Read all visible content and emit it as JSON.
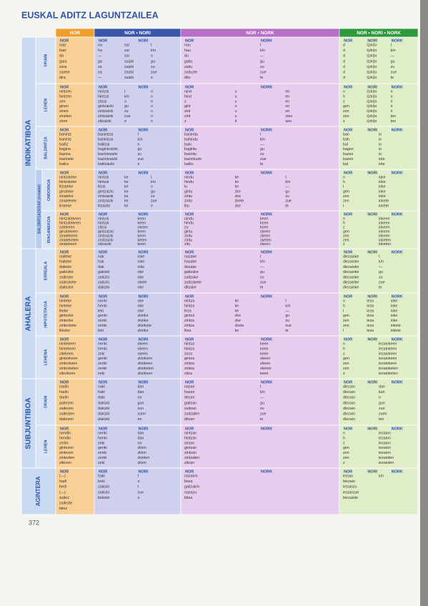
{
  "title": "EUSKAL ADITZ LAGUNTZAILEA",
  "columns": [
    "NOR",
    "NOR • NORI",
    "NOR • NORK",
    "NOR • NORI • NORK"
  ],
  "cell_headers": {
    "nor": [
      "NOR"
    ],
    "nor_nori": [
      "NOR",
      "NORI"
    ],
    "nor_nork": [
      "NOR",
      "NORK"
    ],
    "nor_nori_nork": [
      "NOR",
      "NORI",
      "NORK"
    ]
  },
  "groups": [
    {
      "label": "INDIKATIBOA",
      "sub": "BALDINTZAZKOAK (irrealak)"
    },
    {
      "label": "AHALERA"
    },
    {
      "label": "SUBJUNTIBOA"
    },
    {
      "label": "AGINTERA"
    }
  ],
  "sections": [
    {
      "label": "ORAIN",
      "nor": [
        [
          "naiz"
        ],
        [
          "haiz"
        ],
        [
          "da"
        ],
        [
          "gara"
        ],
        [
          "zara"
        ],
        [
          "zarete"
        ],
        [
          "dira"
        ]
      ],
      "nor_nori": [
        [
          "na",
          "zai",
          "t"
        ],
        [
          "ha",
          "zai",
          "k/n"
        ],
        [
          "—",
          "zai",
          "o"
        ],
        [
          "ga",
          "zaizki",
          "gu"
        ],
        [
          "za",
          "zaizki",
          "zu"
        ],
        [
          "za",
          "zaizki",
          "zue"
        ],
        [
          "—",
          "zaizki",
          "e"
        ]
      ],
      "nor_nork": [
        [
          "nau",
          "t"
        ],
        [
          "hau",
          "k/n"
        ],
        [
          "du",
          "—"
        ],
        [
          "gaitu",
          "gu"
        ],
        [
          "zaitu",
          "zu"
        ],
        [
          "zaituzte",
          "zue"
        ],
        [
          "ditu",
          "te"
        ]
      ],
      "nor_nori_nork": [
        [
          "d",
          "i(zki)o",
          "t"
        ],
        [
          "d",
          "i(zki)o",
          "k/n"
        ],
        [
          "d",
          "i(zki)o",
          "—"
        ],
        [
          "d",
          "i(zki)o",
          "gu"
        ],
        [
          "d",
          "i(zki)o",
          "zu"
        ],
        [
          "d",
          "i(zki)o",
          "zue"
        ],
        [
          "d",
          "i(zki)o",
          "te"
        ]
      ]
    },
    {
      "label": "LEHEN",
      "nor": [
        [
          "nintzen"
        ],
        [
          "hintzen"
        ],
        [
          "zen"
        ],
        [
          "ginen"
        ],
        [
          "zinen"
        ],
        [
          "zineten"
        ],
        [
          "ziren"
        ]
      ],
      "nor_nori": [
        [
          "nintzai",
          "t",
          "n"
        ],
        [
          "hintzai",
          "k/n",
          "n"
        ],
        [
          "zitzai",
          "o",
          "n"
        ],
        [
          "gintzaizki",
          "gu",
          "n"
        ],
        [
          "zintzaizki",
          "zu",
          "n"
        ],
        [
          "zintzaizki",
          "zue",
          "n"
        ],
        [
          "zitzaizki",
          "e",
          "n"
        ]
      ],
      "nor_nork": [
        [
          "nind",
          "u",
          "en"
        ],
        [
          "hind",
          "u",
          "en"
        ],
        [
          "z",
          "u",
          "en"
        ],
        [
          "gint",
          "u",
          "en"
        ],
        [
          "zint",
          "u",
          "en"
        ],
        [
          "zint",
          "u",
          "zten"
        ],
        [
          "z",
          "it",
          "uen"
        ]
      ],
      "nor_nori_nork": [
        [
          "n",
          "i(zki)o",
          "n"
        ],
        [
          "h",
          "i(zki)o",
          "n"
        ],
        [
          "z",
          "i(zki)o",
          "n"
        ],
        [
          "gen",
          "i(zki)o",
          "n"
        ],
        [
          "zen",
          "i(zki)o",
          "n"
        ],
        [
          "zen",
          "i(zki)o",
          "ten"
        ],
        [
          "z",
          "i(zki)o",
          "ten"
        ]
      ]
    },
    {
      "label": "BALDINTZA",
      "nor": [
        [
          "banintz"
        ],
        [
          "bahintz"
        ],
        [
          "balitz"
        ],
        [
          "bagina"
        ],
        [
          "bazina"
        ],
        [
          "bazinete"
        ],
        [
          "balira"
        ]
      ],
      "nor_nori": [
        [
          "banintzai",
          "t"
        ],
        [
          "bahintzai",
          "k/n"
        ],
        [
          "balitzai",
          "o"
        ],
        [
          "bagintzaizki",
          "gu"
        ],
        [
          "bazintzaizki",
          "zu"
        ],
        [
          "bazintzaizki",
          "zue"
        ],
        [
          "balitzaizki",
          "e"
        ]
      ],
      "nor_nork": [
        [
          "banindu",
          "t"
        ],
        [
          "bahindu",
          "k/n"
        ],
        [
          "balu",
          "—"
        ],
        [
          "bagintu",
          "gu"
        ],
        [
          "bazintu",
          "zu"
        ],
        [
          "bazintuzte",
          "zue"
        ],
        [
          "balitu",
          "te"
        ]
      ],
      "nor_nori_nork": [
        [
          "ban",
          "io"
        ],
        [
          "bah",
          "io"
        ],
        [
          "bal",
          "io"
        ],
        [
          "bagen",
          "io"
        ],
        [
          "bazen",
          "io"
        ],
        [
          "bazen",
          "iote"
        ],
        [
          "bal",
          "iote"
        ]
      ]
    },
    {
      "label": "ONDORIOA",
      "nor": [
        [
          "nintzateke"
        ],
        [
          "hintzateke"
        ],
        [
          "litzateke"
        ],
        [
          "ginateke"
        ],
        [
          "zinateke"
        ],
        [
          "zinatekete"
        ],
        [
          "lirateke"
        ]
      ],
      "nor_nori": [
        [
          "nintzai",
          "ke",
          "t"
        ],
        [
          "hintzai",
          "ke",
          "k/n"
        ],
        [
          "litzai",
          "ke",
          "o"
        ],
        [
          "gintzaizki",
          "ke",
          "gu"
        ],
        [
          "zintzaizki",
          "ke",
          "zu"
        ],
        [
          "zintzaizki",
          "ke",
          "zue"
        ],
        [
          "litzaizki",
          "ke",
          "e"
        ]
      ],
      "nor_nork": [
        [
          "nindu",
          "ke",
          "t"
        ],
        [
          "hindu",
          "ke",
          "k/n"
        ],
        [
          "lu",
          "ke",
          "—"
        ],
        [
          "gintu",
          "zke",
          "gu"
        ],
        [
          "zintu",
          "zke",
          "zu"
        ],
        [
          "zintu",
          "zkete",
          "zue"
        ],
        [
          "litu",
          "zke",
          "te"
        ]
      ],
      "nor_nori_nork": [
        [
          "n",
          "ioke"
        ],
        [
          "h",
          "ioke"
        ],
        [
          "l",
          "ioke"
        ],
        [
          "gen",
          "ioke"
        ],
        [
          "zen",
          "ioke"
        ],
        [
          "zen",
          "iokete"
        ],
        [
          "l",
          "iokete"
        ]
      ]
    },
    {
      "label": "IRAGANEKOA",
      "nor": [
        [
          "nintzatekeen"
        ],
        [
          "hintzatekeen"
        ],
        [
          "zatekeen"
        ],
        [
          "ginatekeen"
        ],
        [
          "zinatekeen"
        ],
        [
          "zinateketen"
        ],
        [
          "ziratekeen"
        ]
      ],
      "nor_nori": [
        [
          "nintzai",
          "keen"
        ],
        [
          "hintzai",
          "keen"
        ],
        [
          "zitzai",
          "okeen"
        ],
        [
          "gintzaizki",
          "keen"
        ],
        [
          "zintzaizki",
          "keen"
        ],
        [
          "zintzaizki",
          "keten"
        ],
        [
          "zitzaizki",
          "keen"
        ]
      ],
      "nor_nork": [
        [
          "nindu",
          "keen"
        ],
        [
          "hindu",
          "keen"
        ],
        [
          "zu",
          "keen"
        ],
        [
          "gintu",
          "zkeen"
        ],
        [
          "zintu",
          "zkeen"
        ],
        [
          "zintu",
          "zketen"
        ],
        [
          "zitu",
          "zkeen"
        ]
      ],
      "nor_nori_nork": [
        [
          "n",
          "iokeen"
        ],
        [
          "h",
          "iokeen"
        ],
        [
          "z",
          "iokeen"
        ],
        [
          "gen",
          "iokeen"
        ],
        [
          "zen",
          "iokeen"
        ],
        [
          "zen",
          "ioketen"
        ],
        [
          "z",
          "ioketen"
        ]
      ]
    },
    {
      "label": "ERREALA",
      "nor": [
        [
          "naiteke"
        ],
        [
          "haiteke"
        ],
        [
          "daiteke"
        ],
        [
          "gaitezke"
        ],
        [
          "zaitezke"
        ],
        [
          "zaitezkete"
        ],
        [
          "daitezke"
        ]
      ],
      "nor_nori": [
        [
          "nak",
          "ioke"
        ],
        [
          "hak",
          "ioke"
        ],
        [
          "dak",
          "ioke"
        ],
        [
          "gakizki",
          "oke"
        ],
        [
          "zakizki",
          "oke"
        ],
        [
          "zakizki",
          "okete"
        ],
        [
          "dakizki",
          "oke"
        ]
      ],
      "nor_nork": [
        [
          "nazake",
          "t"
        ],
        [
          "hazake",
          "k/n"
        ],
        [
          "dezake",
          "—"
        ],
        [
          "gaitzake",
          "gu"
        ],
        [
          "zaitzake",
          "zu"
        ],
        [
          "zaitzakete",
          "zue"
        ],
        [
          "ditzake",
          "te"
        ]
      ],
      "nor_nori_nork": [
        [
          "diezaioke",
          "t"
        ],
        [
          "diezaioke",
          "k/n"
        ],
        [
          "diezaioke",
          "—"
        ],
        [
          "diezaioke",
          "gu"
        ],
        [
          "diezaioke",
          "zu"
        ],
        [
          "diezaioke",
          "zue"
        ],
        [
          "diezaioke",
          "te"
        ]
      ]
    },
    {
      "label": "HIPOTETIKOA",
      "nor": [
        [
          "ninteke"
        ],
        [
          "hinteke"
        ],
        [
          "liteke"
        ],
        [
          "gintezke"
        ],
        [
          "zintezke"
        ],
        [
          "zintezkete"
        ],
        [
          "litezke"
        ]
      ],
      "nor_nori": [
        [
          "nenki",
          "oke"
        ],
        [
          "henki",
          "oke"
        ],
        [
          "leki",
          "oke"
        ],
        [
          "genki",
          "zkioke"
        ],
        [
          "zenki",
          "zkioke"
        ],
        [
          "zenki",
          "zkiokete"
        ],
        [
          "leki",
          "zkioke"
        ]
      ],
      "nor_nork": [
        [
          "nintza",
          "ke",
          "t"
        ],
        [
          "hintza",
          "ke",
          "k/n"
        ],
        [
          "leza",
          "ke",
          "—"
        ],
        [
          "gintza",
          "zke",
          "gu"
        ],
        [
          "zintza",
          "zke",
          "zu"
        ],
        [
          "zintza",
          "zkete",
          "zue"
        ],
        [
          "litza",
          "ke",
          "te"
        ]
      ],
      "nor_nori_nork": [
        [
          "n",
          "ieza",
          "ioke"
        ],
        [
          "h",
          "ieza",
          "ioke"
        ],
        [
          "l",
          "ieza",
          "ioke"
        ],
        [
          "gen",
          "ieza",
          "ioke"
        ],
        [
          "zen",
          "ieza",
          "ioke"
        ],
        [
          "zen",
          "ieza",
          "iokete"
        ],
        [
          "l",
          "ieza",
          "iokete"
        ]
      ]
    },
    {
      "label": "LEHENA",
      "nor": [
        [
          "nintekeen"
        ],
        [
          "hintekeen"
        ],
        [
          "zitekeen"
        ],
        [
          "gintezkeen"
        ],
        [
          "zintezkeen"
        ],
        [
          "zintezketen"
        ],
        [
          "zitezkeen"
        ]
      ],
      "nor_nori": [
        [
          "nenki",
          "okeen"
        ],
        [
          "henki",
          "okeen"
        ],
        [
          "zeki",
          "okeen"
        ],
        [
          "genki",
          "zkiokeen"
        ],
        [
          "zenki",
          "zkiokeen"
        ],
        [
          "zenki",
          "zkioketen"
        ],
        [
          "zeki",
          "zkiokeen"
        ]
      ],
      "nor_nork": [
        [
          "nintza",
          "keen"
        ],
        [
          "hintza",
          "keen"
        ],
        [
          "zeza",
          "keen"
        ],
        [
          "gintza",
          "zkeen"
        ],
        [
          "zintza",
          "zkeen"
        ],
        [
          "zintza",
          "zketen"
        ],
        [
          "zitza",
          "keen"
        ]
      ],
      "nor_nori_nork": [
        [
          "n",
          "iezaiokeen"
        ],
        [
          "h",
          "iezaiokeen"
        ],
        [
          "z",
          "iezaiokeen"
        ],
        [
          "gen",
          "iezaiokeen"
        ],
        [
          "zen",
          "iezaiokeen"
        ],
        [
          "zen",
          "iezaioketen"
        ],
        [
          "z",
          "iezaioketen"
        ]
      ]
    },
    {
      "label": "ORAIN",
      "nor": [
        [
          "nadin"
        ],
        [
          "hadin"
        ],
        [
          "dadin"
        ],
        [
          "gaitezen"
        ],
        [
          "zaitezen"
        ],
        [
          "zaitezten"
        ],
        [
          "daitezen"
        ]
      ],
      "nor_nori": [
        [
          "naki",
          "dan"
        ],
        [
          "haki",
          "dan"
        ],
        [
          "daki",
          "on"
        ],
        [
          "dakizki",
          "gun"
        ],
        [
          "dakizki",
          "zun"
        ],
        [
          "dakizki",
          "zuen"
        ],
        [
          "dakizki",
          "en"
        ]
      ],
      "nor_nork": [
        [
          "nazan",
          "t"
        ],
        [
          "hazan",
          "k/n"
        ],
        [
          "dezan",
          "—"
        ],
        [
          "gaitzan",
          "gu"
        ],
        [
          "zaitzan",
          "zu"
        ],
        [
          "zaitzaten",
          "zue"
        ],
        [
          "ditzan",
          "te"
        ]
      ],
      "nor_nori_nork": [
        [
          "diezaio",
          "dan"
        ],
        [
          "diezaio",
          "kan"
        ],
        [
          "diezaio",
          "n"
        ],
        [
          "diezaio",
          "gun"
        ],
        [
          "diezaio",
          "zun"
        ],
        [
          "diezaio",
          "zuen"
        ],
        [
          "diezaio",
          "ten"
        ]
      ]
    },
    {
      "label": "LEHEN",
      "nor": [
        [
          "nendin"
        ],
        [
          "hendin"
        ],
        [
          "zedin"
        ],
        [
          "gintezen"
        ],
        [
          "zintezen"
        ],
        [
          "zintezten"
        ],
        [
          "zitezen"
        ]
      ],
      "nor_nori": [
        [
          "nenki",
          "dan"
        ],
        [
          "henki",
          "dan"
        ],
        [
          "zeki",
          "on"
        ],
        [
          "genki",
          "zkion"
        ],
        [
          "zenki",
          "zkion"
        ],
        [
          "zenki",
          "zkioten"
        ],
        [
          "zeki",
          "zkion"
        ]
      ],
      "nor_nork": [
        [
          "nintzan"
        ],
        [
          "hintzan"
        ],
        [
          "zezan"
        ],
        [
          "gintzan"
        ],
        [
          "zintzan"
        ],
        [
          "zintzaten"
        ],
        [
          "zitzan"
        ]
      ],
      "nor_nori_nork": [
        [
          "n",
          "iezaion"
        ],
        [
          "h",
          "iezaion"
        ],
        [
          "z",
          "iezaion"
        ],
        [
          "gen",
          "iezaion"
        ],
        [
          "zen",
          "iezaion"
        ],
        [
          "zen",
          "iezaioten"
        ],
        [
          "z",
          "iezaioten"
        ]
      ]
    },
    {
      "label": "AGINTERA",
      "nor": [
        [
          "(—)"
        ],
        [
          "hadi"
        ],
        [
          "bedi"
        ],
        [
          "(—)"
        ],
        [
          "zaitez"
        ],
        [
          "zaitezte"
        ],
        [
          "bitez"
        ]
      ],
      "nor_nori": [
        [
          "haki",
          "t"
        ],
        [
          "beki",
          "o"
        ],
        [
          "zakizki",
          "t"
        ],
        [
          "zakizki",
          "zue"
        ],
        [
          "bekizki",
          "o"
        ]
      ],
      "nor_nork": [
        [
          "nazak/n"
        ],
        [
          "beza"
        ],
        [
          "gaitzak/n"
        ],
        [
          "nazazu"
        ],
        [
          "bitza"
        ]
      ],
      "nor_nori_nork": [
        [
          "iezaio",
          "k/n"
        ],
        [
          "biezaio"
        ],
        [
          "iezaiozu"
        ],
        [
          "iezaiozue"
        ],
        [
          "biezaiote"
        ]
      ]
    }
  ],
  "page_number": "372"
}
